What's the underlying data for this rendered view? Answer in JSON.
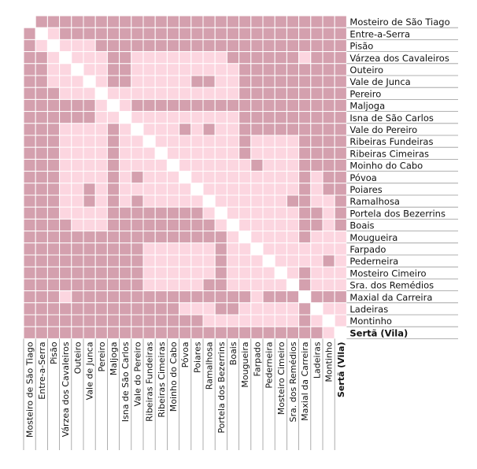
{
  "chart_data": {
    "type": "heatmap",
    "title": "",
    "xlabel": "",
    "ylabel": "",
    "labels": [
      "Mosteiro de São Tiago",
      "Entre-a-Serra",
      "Pisão",
      "Várzea dos Cavaleiros",
      "Outeiro",
      "Vale de Junca",
      "Pereiro",
      "Maljoga",
      "Isna de São Carlos",
      "Vale do Pereiro",
      "Ribeiras Fundeiras",
      "Ribeiras Cimeiras",
      "Moinho do Cabo",
      "Póvoa",
      "Poiares",
      "Ramalhosa",
      "Portela dos Bezerrins",
      "Boais",
      "Mougueira",
      "Farpado",
      "Pederneira",
      "Mosteiro Cimeiro",
      "Sra. dos Remédios",
      "Maxial da Carreira",
      "Ladeiras",
      "Montinho",
      "Sertã (Vila)"
    ],
    "bold_label_index": 26,
    "levels": [
      "low",
      "high"
    ],
    "colors": {
      "low": "#fcd6e0",
      "high": "#d4a0ae",
      "diagonal": "#ffffff",
      "grid": "#ffffff"
    },
    "matrix": [
      [
        2,
        1,
        1,
        1,
        1,
        1,
        1,
        1,
        1,
        1,
        1,
        1,
        1,
        1,
        1,
        1,
        1,
        1,
        1,
        1,
        1,
        1,
        1,
        1,
        1,
        1,
        1
      ],
      [
        1,
        2,
        0,
        1,
        1,
        1,
        1,
        1,
        1,
        1,
        1,
        1,
        1,
        1,
        1,
        1,
        1,
        1,
        1,
        1,
        1,
        1,
        1,
        1,
        1,
        1,
        1
      ],
      [
        1,
        0,
        2,
        0,
        0,
        0,
        1,
        1,
        1,
        1,
        1,
        1,
        1,
        1,
        1,
        1,
        1,
        1,
        1,
        1,
        1,
        1,
        1,
        1,
        1,
        1,
        1
      ],
      [
        1,
        1,
        0,
        2,
        0,
        0,
        0,
        1,
        1,
        0,
        0,
        0,
        0,
        0,
        0,
        0,
        0,
        1,
        1,
        1,
        1,
        1,
        1,
        0,
        1,
        1,
        1
      ],
      [
        1,
        1,
        0,
        0,
        2,
        0,
        0,
        1,
        1,
        0,
        0,
        0,
        0,
        0,
        0,
        0,
        0,
        0,
        1,
        1,
        1,
        1,
        1,
        1,
        1,
        1,
        1
      ],
      [
        1,
        1,
        0,
        0,
        0,
        2,
        0,
        1,
        1,
        0,
        0,
        0,
        0,
        0,
        1,
        1,
        0,
        0,
        1,
        1,
        1,
        1,
        1,
        1,
        1,
        1,
        1
      ],
      [
        1,
        1,
        1,
        0,
        0,
        0,
        2,
        0,
        0,
        0,
        0,
        0,
        0,
        0,
        0,
        0,
        0,
        0,
        1,
        1,
        1,
        1,
        1,
        1,
        1,
        1,
        1
      ],
      [
        1,
        1,
        1,
        1,
        1,
        1,
        0,
        2,
        0,
        1,
        1,
        1,
        1,
        1,
        1,
        1,
        1,
        1,
        1,
        1,
        1,
        1,
        1,
        1,
        1,
        1,
        1
      ],
      [
        1,
        1,
        1,
        1,
        1,
        1,
        0,
        0,
        2,
        0,
        0,
        0,
        0,
        0,
        0,
        0,
        0,
        0,
        1,
        1,
        1,
        1,
        1,
        1,
        1,
        1,
        1
      ],
      [
        1,
        1,
        1,
        0,
        0,
        0,
        0,
        1,
        0,
        2,
        0,
        0,
        0,
        1,
        0,
        1,
        0,
        0,
        1,
        1,
        1,
        1,
        1,
        1,
        1,
        1,
        1
      ],
      [
        1,
        1,
        1,
        0,
        0,
        0,
        0,
        1,
        0,
        0,
        2,
        0,
        0,
        0,
        0,
        0,
        0,
        0,
        1,
        0,
        0,
        0,
        0,
        1,
        1,
        1,
        1
      ],
      [
        1,
        1,
        1,
        0,
        0,
        0,
        0,
        1,
        0,
        0,
        0,
        2,
        0,
        0,
        0,
        0,
        0,
        0,
        1,
        0,
        0,
        0,
        0,
        1,
        1,
        1,
        1
      ],
      [
        1,
        1,
        1,
        0,
        0,
        0,
        0,
        1,
        0,
        0,
        0,
        0,
        2,
        0,
        0,
        0,
        0,
        0,
        0,
        1,
        0,
        0,
        0,
        1,
        1,
        1,
        1
      ],
      [
        1,
        1,
        1,
        0,
        0,
        0,
        0,
        1,
        0,
        1,
        0,
        0,
        0,
        2,
        0,
        0,
        0,
        0,
        0,
        0,
        0,
        0,
        0,
        1,
        0,
        1,
        1
      ],
      [
        1,
        1,
        1,
        0,
        0,
        1,
        0,
        1,
        0,
        0,
        0,
        0,
        0,
        0,
        2,
        0,
        0,
        0,
        0,
        0,
        0,
        0,
        0,
        1,
        0,
        1,
        1
      ],
      [
        1,
        1,
        1,
        0,
        0,
        1,
        0,
        1,
        0,
        1,
        0,
        0,
        0,
        0,
        0,
        2,
        0,
        0,
        0,
        0,
        0,
        0,
        1,
        1,
        0,
        0,
        1
      ],
      [
        1,
        1,
        1,
        0,
        0,
        0,
        0,
        1,
        1,
        1,
        1,
        1,
        1,
        1,
        1,
        0,
        2,
        0,
        0,
        0,
        0,
        0,
        0,
        1,
        1,
        0,
        1
      ],
      [
        1,
        1,
        1,
        1,
        0,
        0,
        0,
        1,
        1,
        1,
        1,
        1,
        1,
        1,
        1,
        1,
        0,
        2,
        0,
        0,
        0,
        0,
        0,
        1,
        1,
        0,
        1
      ],
      [
        1,
        1,
        1,
        1,
        1,
        1,
        1,
        1,
        1,
        1,
        1,
        1,
        1,
        1,
        1,
        1,
        1,
        0,
        2,
        0,
        0,
        0,
        0,
        1,
        0,
        0,
        0
      ],
      [
        1,
        1,
        1,
        1,
        1,
        1,
        1,
        1,
        1,
        1,
        0,
        0,
        0,
        0,
        0,
        0,
        1,
        0,
        0,
        2,
        0,
        0,
        0,
        0,
        0,
        0,
        0
      ],
      [
        1,
        1,
        1,
        1,
        1,
        1,
        1,
        1,
        1,
        1,
        0,
        0,
        0,
        0,
        0,
        0,
        1,
        0,
        0,
        0,
        2,
        0,
        0,
        0,
        0,
        1,
        0
      ],
      [
        1,
        1,
        1,
        1,
        1,
        1,
        1,
        1,
        1,
        1,
        0,
        0,
        0,
        0,
        0,
        0,
        1,
        0,
        0,
        0,
        0,
        2,
        0,
        1,
        0,
        0,
        0
      ],
      [
        1,
        1,
        1,
        1,
        1,
        1,
        1,
        1,
        1,
        1,
        0,
        0,
        0,
        0,
        0,
        1,
        1,
        0,
        0,
        0,
        0,
        0,
        2,
        1,
        0,
        0,
        0
      ],
      [
        1,
        1,
        1,
        0,
        1,
        1,
        1,
        1,
        1,
        1,
        1,
        1,
        1,
        1,
        1,
        1,
        1,
        1,
        1,
        0,
        1,
        1,
        1,
        2,
        1,
        1,
        1
      ],
      [
        1,
        1,
        1,
        1,
        1,
        1,
        1,
        1,
        1,
        1,
        1,
        1,
        1,
        0,
        0,
        0,
        1,
        1,
        0,
        0,
        0,
        0,
        0,
        1,
        2,
        0,
        0
      ],
      [
        1,
        1,
        1,
        1,
        1,
        1,
        1,
        1,
        1,
        1,
        1,
        1,
        1,
        1,
        1,
        0,
        0,
        0,
        0,
        0,
        0,
        0,
        0,
        1,
        0,
        2,
        0
      ],
      [
        1,
        1,
        1,
        1,
        1,
        1,
        1,
        1,
        1,
        1,
        1,
        1,
        1,
        1,
        1,
        1,
        1,
        1,
        1,
        1,
        1,
        1,
        1,
        1,
        1,
        0,
        2
      ]
    ]
  }
}
